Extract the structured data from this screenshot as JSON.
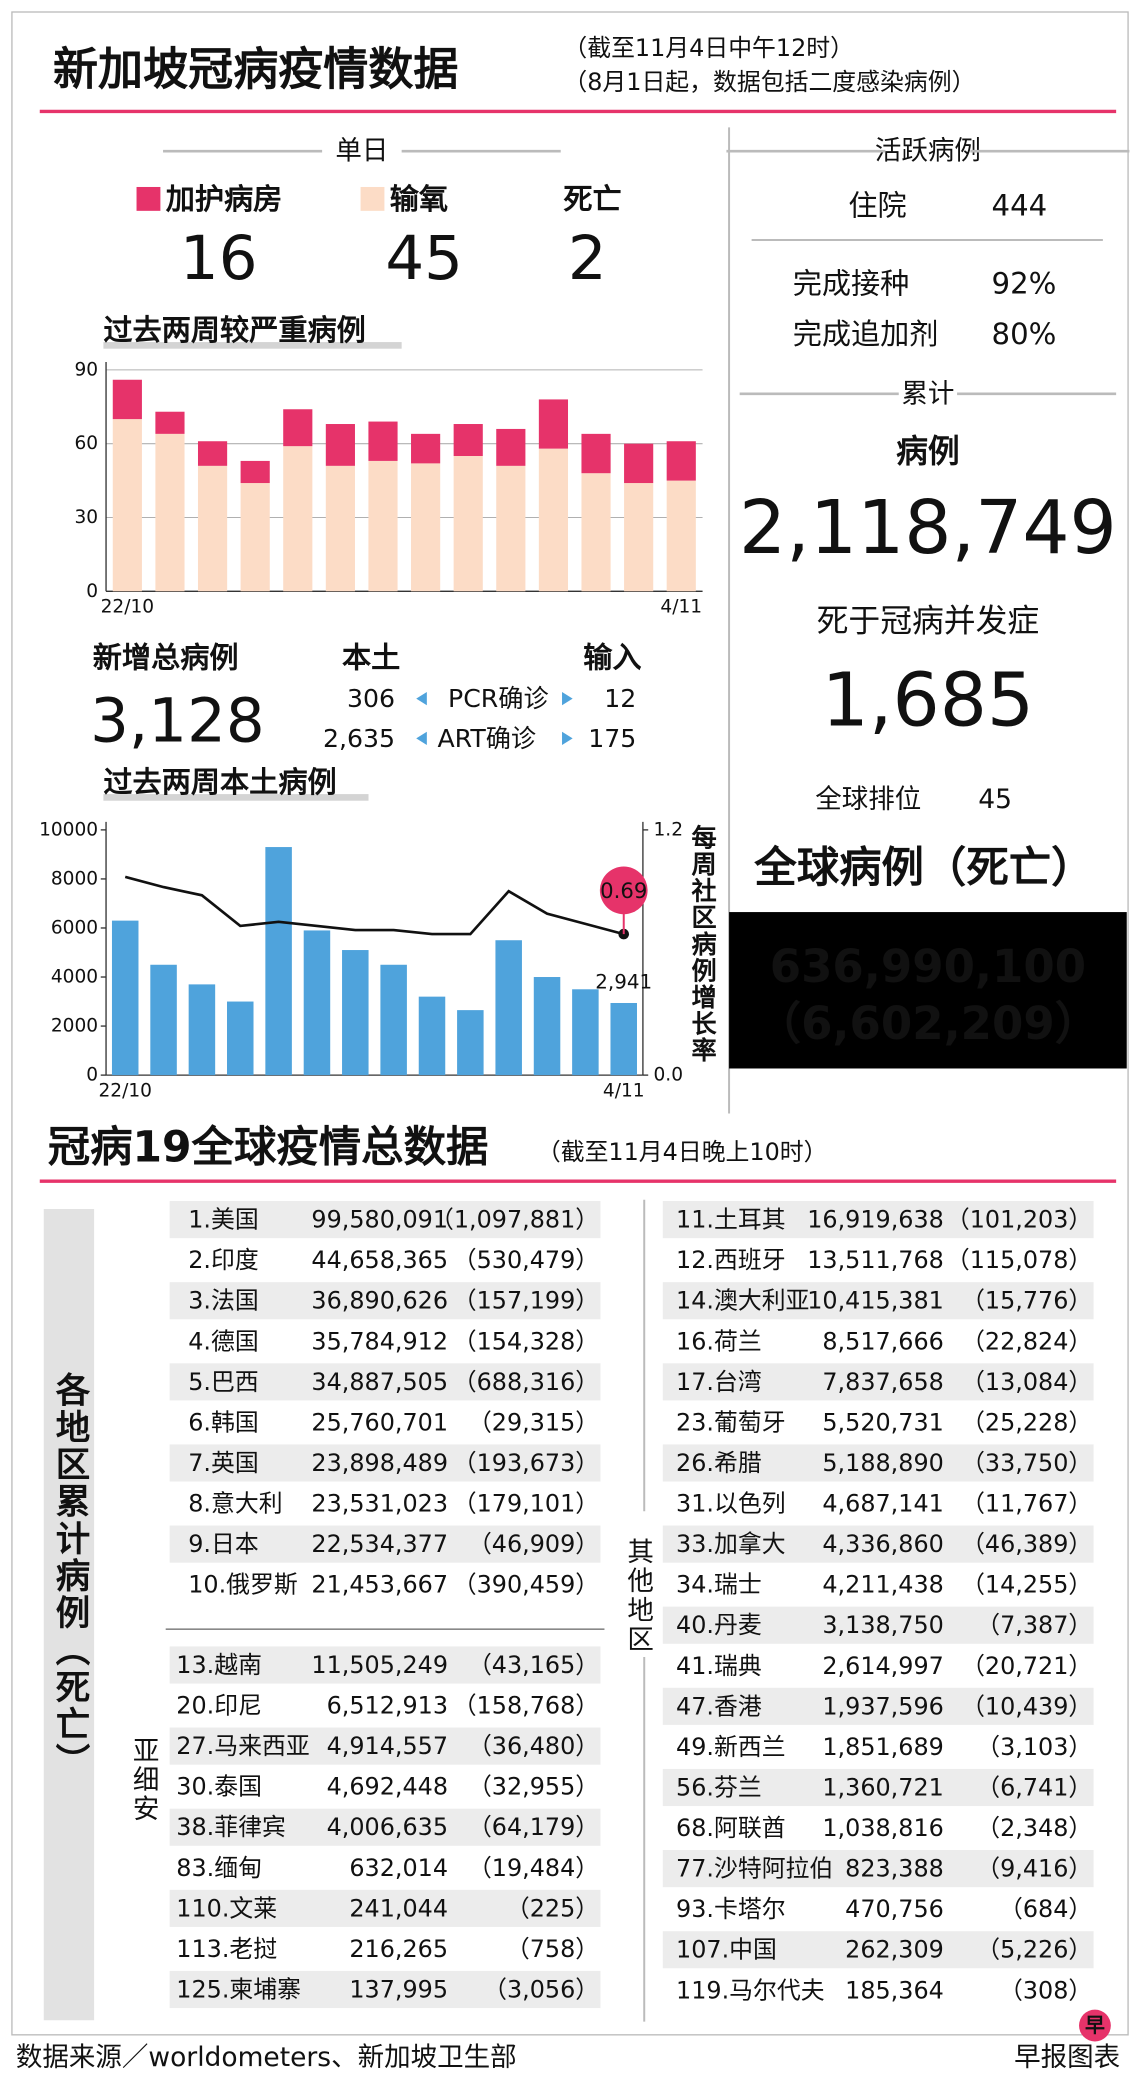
{
  "header": {
    "title": "新加坡冠病疫情数据",
    "notes": [
      "（截至11月4日中午12时）",
      "（8月1日起，数据包括二度感染病例）"
    ]
  },
  "daily": {
    "label": "单日",
    "death_label": "死亡",
    "values": [
      "16",
      "45",
      "2"
    ]
  },
  "chart_data": [
    {
      "type": "stacked-bar",
      "title": "过去两周较严重病例",
      "categories": [
        "22/10",
        null,
        null,
        null,
        null,
        null,
        null,
        null,
        null,
        null,
        null,
        null,
        null,
        "4/11"
      ],
      "series": [
        {
          "name": "加护病房",
          "color": "#e6336a",
          "values": [
            16,
            9,
            10,
            9,
            15,
            17,
            16,
            12,
            13,
            15,
            20,
            16,
            16,
            16
          ]
        },
        {
          "name": "输氧",
          "color": "#fcdcc6",
          "values": [
            70,
            64,
            51,
            44,
            59,
            51,
            53,
            52,
            55,
            51,
            58,
            48,
            44,
            45
          ]
        }
      ],
      "ylim": [
        0,
        90
      ],
      "yticks": [
        0,
        30,
        60,
        90
      ],
      "grid": true
    },
    {
      "type": "bar-line",
      "title": "过去两周本土病例",
      "y2label": "每周社区病例增长率",
      "categories": [
        "22/10",
        null,
        null,
        null,
        null,
        null,
        null,
        null,
        null,
        null,
        null,
        null,
        null,
        "4/11"
      ],
      "series": [
        {
          "color": "#4fa3dc",
          "values": [
            6300,
            4500,
            3700,
            3000,
            9300,
            5900,
            5100,
            4500,
            3200,
            2650,
            5500,
            4000,
            3500,
            2941
          ],
          "value_labels": [
            null,
            null,
            null,
            null,
            null,
            null,
            null,
            null,
            null,
            null,
            null,
            null,
            null,
            "2,941"
          ]
        },
        {
          "color": "#111111",
          "axis": "y2",
          "highlight_color": "#e6336a",
          "values": [
            0.97,
            0.92,
            0.88,
            0.73,
            0.75,
            0.73,
            0.71,
            0.71,
            0.69,
            0.69,
            0.9,
            0.79,
            0.74,
            0.69
          ]
        }
      ],
      "ylim": [
        0,
        10000
      ],
      "yticks": [
        0,
        2000,
        4000,
        6000,
        8000,
        10000
      ],
      "y2lim": [
        0,
        1.2
      ],
      "y2ticks": [
        {
          "value": 0,
          "label": "0.0"
        },
        1.2
      ],
      "grid": false
    }
  ],
  "new_cases": {
    "label": "新增总病例",
    "total": "3,128",
    "local_label": "本土",
    "imported_label": "输入",
    "rows": [
      [
        "306",
        "PCR确诊",
        "12"
      ],
      [
        "2,635",
        "ART确诊",
        "175"
      ]
    ]
  },
  "active": {
    "label": "活跃病例",
    "items": [
      [
        "住院",
        "444"
      ],
      [
        "完成接种",
        "92%"
      ],
      [
        "完成追加剂",
        "80%"
      ]
    ]
  },
  "cumulative": {
    "label": "累计",
    "cases_label": "病例",
    "cases": "2,118,749",
    "deaths_label": "死于冠病并发症",
    "deaths": "1,685",
    "rank_label": "全球排位",
    "rank": "45"
  },
  "global": {
    "label": "全球病例（死亡）",
    "cases": "636,990,100",
    "deaths": "（6,602,209）"
  },
  "world": {
    "title": "冠病19全球疫情总数据",
    "note": "（截至11月4日晚上10时）",
    "side_label": "各地区累计病例（死亡）",
    "top": [
      [
        "1.美国",
        "99,580,091",
        "（1,097,881）"
      ],
      [
        "2.印度",
        "44,658,365",
        "（530,479）"
      ],
      [
        "3.法国",
        "36,890,626",
        "（157,199）"
      ],
      [
        "4.德国",
        "35,784,912",
        "（154,328）"
      ],
      [
        "5.巴西",
        "34,887,505",
        "（688,316）"
      ],
      [
        "6.韩国",
        "25,760,701",
        "（29,315）"
      ],
      [
        "7.英国",
        "23,898,489",
        "（193,673）"
      ],
      [
        "8.意大利",
        "23,531,023",
        "（179,101）"
      ],
      [
        "9.日本",
        "22,534,377",
        "（46,909）"
      ],
      [
        "10.俄罗斯",
        "21,453,667",
        "（390,459）"
      ]
    ],
    "asean_label": "亚细安",
    "asean": [
      [
        "13.越南",
        "11,505,249",
        "（43,165）"
      ],
      [
        "20.印尼",
        "6,512,913",
        "（158,768）"
      ],
      [
        "27.马来西亚",
        "4,914,557",
        "（36,480）"
      ],
      [
        "30.泰国",
        "4,692,448",
        "（32,955）"
      ],
      [
        "38.菲律宾",
        "4,006,635",
        "（64,179）"
      ],
      [
        "83.缅甸",
        "632,014",
        "（19,484）"
      ],
      [
        "110.文莱",
        "241,044",
        "（225）"
      ],
      [
        "113.老挝",
        "216,265",
        "（758）"
      ],
      [
        "125.柬埔寨",
        "137,995",
        "（3,056）"
      ]
    ],
    "others_label": "其他地区",
    "others": [
      [
        "11.土耳其",
        "16,919,638",
        "（101,203）"
      ],
      [
        "12.西班牙",
        "13,511,768",
        "（115,078）"
      ],
      [
        "14.澳大利亚",
        "10,415,381",
        "（15,776）"
      ],
      [
        "16.荷兰",
        "8,517,666",
        "（22,824）"
      ],
      [
        "17.台湾",
        "7,837,658",
        "（13,084）"
      ],
      [
        "23.葡萄牙",
        "5,520,731",
        "（25,228）"
      ],
      [
        "26.希腊",
        "5,188,890",
        "（33,750）"
      ],
      [
        "31.以色列",
        "4,687,141",
        "（11,767）"
      ],
      [
        "33.加拿大",
        "4,336,860",
        "（46,389）"
      ],
      [
        "34.瑞士",
        "4,211,438",
        "（14,255）"
      ],
      [
        "40.丹麦",
        "3,138,750",
        "（7,387）"
      ],
      [
        "41.瑞典",
        "2,614,997",
        "（20,721）"
      ],
      [
        "47.香港",
        "1,937,596",
        "（10,439）"
      ],
      [
        "49.新西兰",
        "1,851,689",
        "（3,103）"
      ],
      [
        "56.芬兰",
        "1,360,721",
        "（6,741）"
      ],
      [
        "68.阿联酋",
        "1,038,816",
        "（2,348）"
      ],
      [
        "77.沙特阿拉伯",
        "823,388",
        "（9,416）"
      ],
      [
        "93.卡塔尔",
        "470,756",
        "（684）"
      ],
      [
        "107.中国",
        "262,309",
        "（5,226）"
      ],
      [
        "119.马尔代夫",
        "185,364",
        "（308）"
      ]
    ]
  },
  "footer": {
    "source": "数据来源／worldometers、新加坡卫生部",
    "credit": "早报图表",
    "logo": "早"
  }
}
